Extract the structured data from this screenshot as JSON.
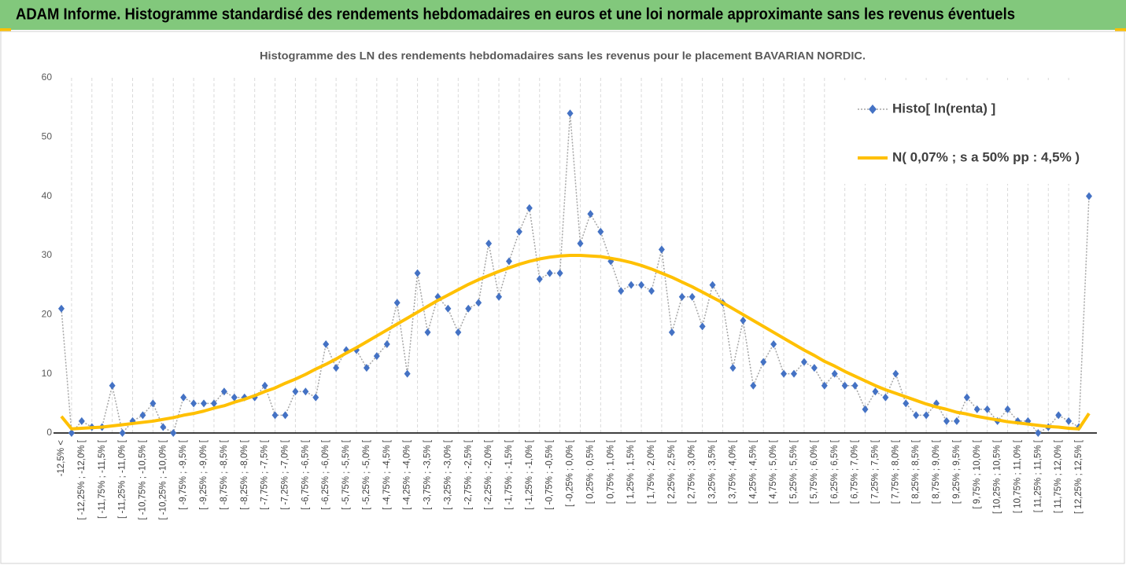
{
  "header": {
    "title": "ADAM Informe. Histogramme standardisé des rendements hebdomadaires en euros et une loi normale approximante sans les revenus éventuels"
  },
  "chart_data": {
    "type": "line",
    "title": "Histogramme des LN des rendements hebdomadaires sans les revenus pour le placement BAVARIAN NORDIC.",
    "categories": [
      "-12,5% <",
      null,
      "[ -12,25% ; -12,0% [",
      null,
      "[ -11,75% ; -11,5% [",
      null,
      "[ -11,25% ; -11,0% [",
      null,
      "[ -10,75% ; -10,5% [",
      null,
      "[ -10,25% ; -10,0% [",
      null,
      "[ -9,75% ; -9,5% [",
      null,
      "[ -9,25% ; -9,0% [",
      null,
      "[ -8,75% ; -8,5% [",
      null,
      "[ -8,25% ; -8,0% [",
      null,
      "[ -7,75% ; -7,5% [",
      null,
      "[ -7,25% ; -7,0% [",
      null,
      "[ -6,75% ; -6,5% [",
      null,
      "[ -6,25% ; -6,0% [",
      null,
      "[ -5,75% ; -5,5% [",
      null,
      "[ -5,25% ; -5,0% [",
      null,
      "[ -4,75% ; -4,5% [",
      null,
      "[ -4,25% ; -4,0% [",
      null,
      "[ -3,75% ; -3,5% [",
      null,
      "[ -3,25% ; -3,0% [",
      null,
      "[ -2,75% ; -2,5% [",
      null,
      "[ -2,25% ; -2,0% [",
      null,
      "[ -1,75% ; -1,5% [",
      null,
      "[ -1,25% ; -1,0% [",
      null,
      "[ -0,75% ; -0,5% [",
      null,
      "[ -0,25% ; 0,0% [",
      null,
      "[ 0,25% ; 0,5% [",
      null,
      "[ 0,75% ; 1,0% [",
      null,
      "[ 1,25% ; 1,5% [",
      null,
      "[ 1,75% ; 2,0% [",
      null,
      "[ 2,25% ; 2,5% [",
      null,
      "[ 2,75% ; 3,0% [",
      null,
      "[ 3,25% ; 3,5% [",
      null,
      "[ 3,75% ; 4,0% [",
      null,
      "[ 4,25% ; 4,5% [",
      null,
      "[ 4,75% ; 5,0% [",
      null,
      "[ 5,25% ; 5,5% [",
      null,
      "[ 5,75% ; 6,0% [",
      null,
      "[ 6,25% ; 6,5% [",
      null,
      "[ 6,75% ; 7,0% [",
      null,
      "[ 7,25% ; 7,5% [",
      null,
      "[ 7,75% ; 8,0% [",
      null,
      "[ 8,25% ; 8,5% [",
      null,
      "[ 8,75% ; 9,0% [",
      null,
      "[ 9,25% ; 9,5% [",
      null,
      "[ 9,75% ; 10,0% [",
      null,
      "[ 10,25% ; 10,5% [",
      null,
      "[ 10,75% ; 11,0% [",
      null,
      "[ 11,25% ; 11,5% [",
      null,
      "[ 11,75% ; 12,0% [",
      null,
      "[ 12,25% ; 12,5% [",
      null
    ],
    "series": [
      {
        "name": "Histo[ ln(renta) ]",
        "color": "#4472c4",
        "line_color": "#a5a5a5",
        "marker": "diamond",
        "line_style": "dotted",
        "values": [
          21,
          0,
          2,
          1,
          1,
          8,
          0,
          2,
          3,
          5,
          1,
          0,
          6,
          5,
          5,
          5,
          7,
          6,
          6,
          6,
          8,
          3,
          3,
          7,
          7,
          6,
          15,
          11,
          14,
          14,
          11,
          13,
          15,
          22,
          10,
          27,
          17,
          23,
          21,
          17,
          21,
          22,
          32,
          23,
          29,
          34,
          38,
          26,
          27,
          27,
          54,
          32,
          37,
          34,
          29,
          24,
          25,
          25,
          24,
          31,
          17,
          23,
          23,
          18,
          25,
          22,
          11,
          19,
          8,
          12,
          15,
          10,
          10,
          12,
          11,
          8,
          10,
          8,
          8,
          4,
          7,
          6,
          10,
          5,
          3,
          3,
          5,
          2,
          2,
          6,
          4,
          4,
          2,
          4,
          2,
          2,
          0,
          1,
          3,
          2,
          1,
          40
        ]
      },
      {
        "name": "N( 0,07% ; s a 50% pp : 4,5% )",
        "color": "#ffc000",
        "marker": "none",
        "line_style": "solid",
        "values": [
          2.8,
          0.7,
          0.8,
          0.9,
          1.0,
          1.2,
          1.4,
          1.6,
          1.8,
          2.0,
          2.3,
          2.6,
          3.0,
          3.3,
          3.7,
          4.2,
          4.6,
          5.2,
          5.7,
          6.3,
          7.0,
          7.6,
          8.4,
          9.1,
          9.9,
          10.8,
          11.6,
          12.5,
          13.5,
          14.4,
          15.4,
          16.4,
          17.4,
          18.4,
          19.4,
          20.4,
          21.4,
          22.4,
          23.3,
          24.2,
          25.1,
          25.9,
          26.6,
          27.3,
          27.9,
          28.5,
          29.0,
          29.4,
          29.7,
          29.9,
          30.0,
          30.0,
          29.9,
          29.8,
          29.5,
          29.2,
          28.8,
          28.3,
          27.7,
          27.0,
          26.3,
          25.5,
          24.7,
          23.8,
          22.9,
          22.0,
          21.0,
          20.0,
          19.0,
          18.0,
          17.0,
          16.0,
          15.0,
          14.0,
          13.1,
          12.1,
          11.3,
          10.4,
          9.6,
          8.8,
          8.0,
          7.3,
          6.7,
          6.1,
          5.5,
          4.9,
          4.4,
          4.0,
          3.5,
          3.2,
          2.8,
          2.5,
          2.2,
          1.9,
          1.7,
          1.5,
          1.3,
          1.1,
          1.0,
          0.8,
          0.7,
          3.3
        ]
      }
    ],
    "ylim": [
      0,
      60
    ],
    "yticks": [
      0,
      10,
      20,
      30,
      40,
      50,
      60
    ],
    "grid": false,
    "category_grid": true,
    "legend": "upper right"
  }
}
